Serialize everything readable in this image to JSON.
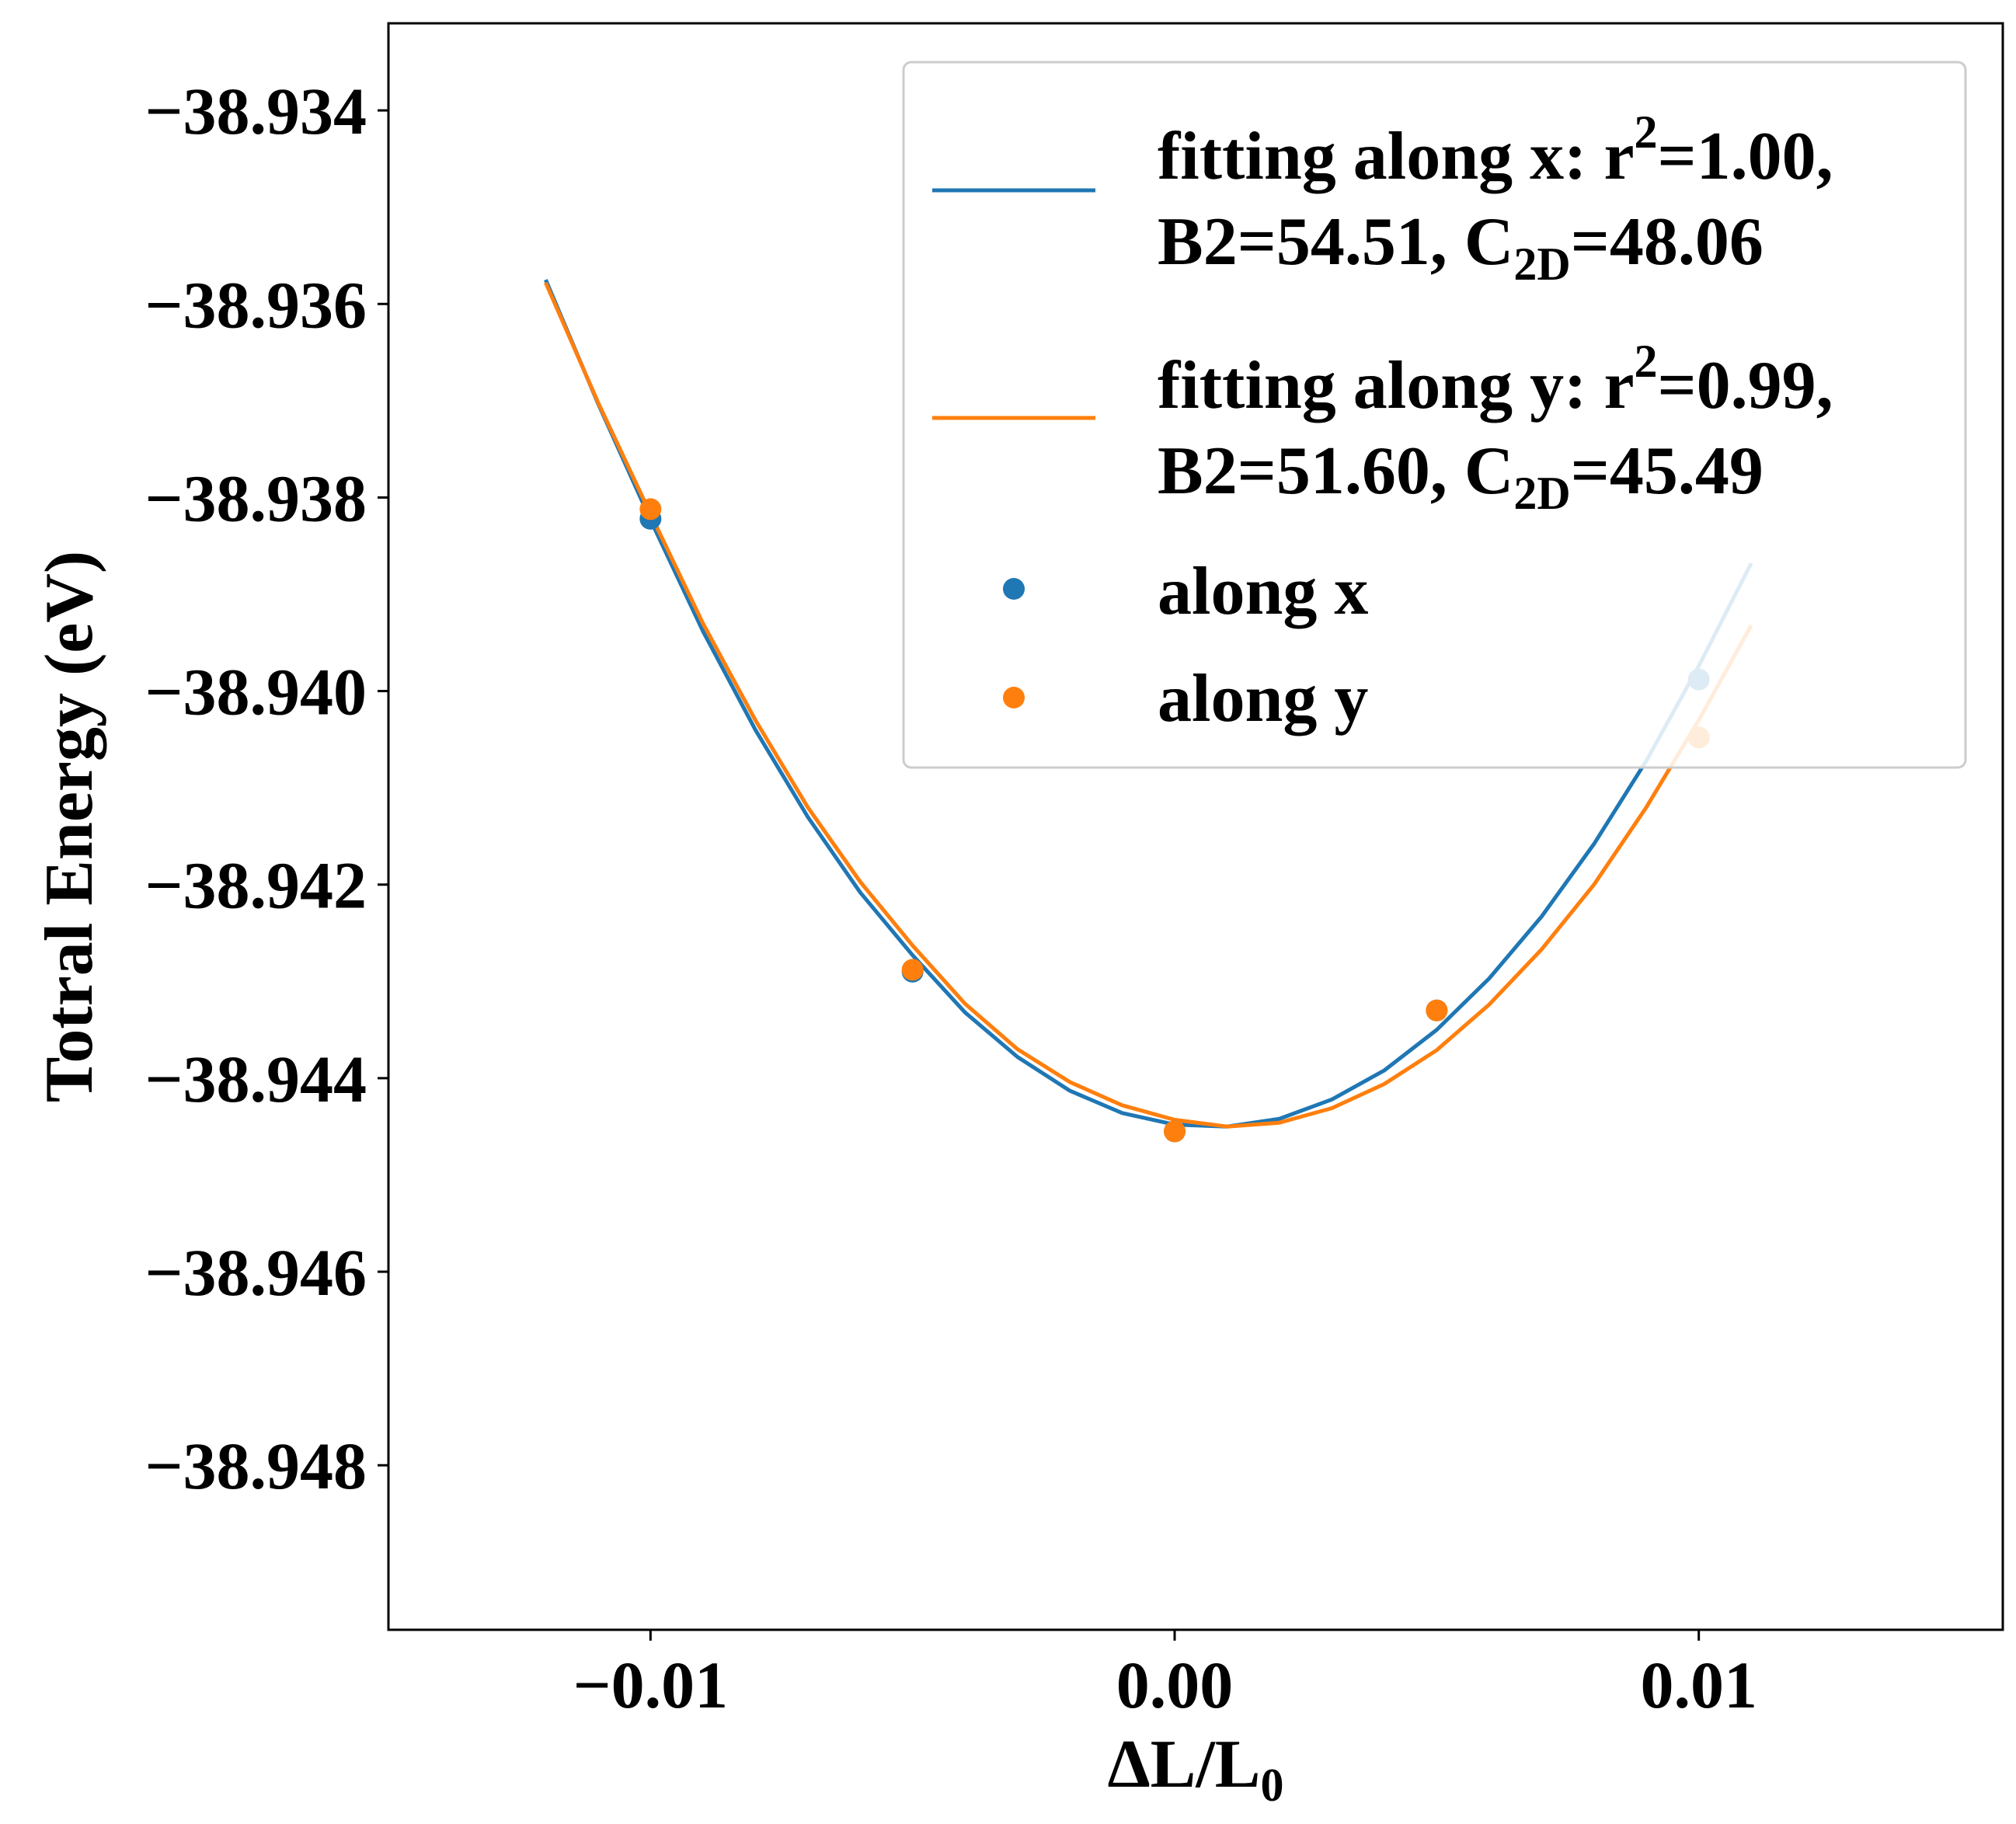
{
  "chart_data": {
    "type": "scatter",
    "xlabel": "ΔL/L",
    "xlabel_subscript": "0",
    "ylabel": "Totral Energy (eV)",
    "xlim": [
      -0.015,
      0.0158
    ],
    "ylim": [
      -38.9497,
      -38.9331
    ],
    "xticks": [
      -0.01,
      0.0,
      0.01
    ],
    "xtick_labels": [
      "−0.01",
      "0.00",
      "0.01"
    ],
    "yticks": [
      -38.934,
      -38.936,
      -38.938,
      -38.94,
      -38.942,
      -38.944,
      -38.946,
      -38.948
    ],
    "ytick_labels": [
      "−38.934",
      "−38.936",
      "−38.938",
      "−38.940",
      "−38.942",
      "−38.944",
      "−38.946",
      "−38.948"
    ],
    "legend_position": "upper-right",
    "series": [
      {
        "name": "fitting along x",
        "kind": "line",
        "color": "#1f77b4",
        "legend_line1_prefix": "fitting along x: r",
        "legend_line1_sup": "2",
        "legend_line1_suffix": "=1.00,",
        "legend_line2_prefix": "B2=54.51, C",
        "legend_line2_sub": "2D",
        "legend_line2_suffix": "=48.06",
        "x": [
          -0.012,
          -0.011,
          -0.01,
          -0.009,
          -0.008,
          -0.007,
          -0.006,
          -0.005,
          -0.004,
          -0.003,
          -0.002,
          -0.001,
          0.0,
          0.001,
          0.002,
          0.003,
          0.004,
          0.005,
          0.006,
          0.007,
          0.008,
          0.009,
          0.01,
          0.011
        ],
        "y": [
          -38.93575,
          -38.93703,
          -38.93823,
          -38.93938,
          -38.9404,
          -38.9413,
          -38.94208,
          -38.94273,
          -38.94332,
          -38.94378,
          -38.94413,
          -38.94436,
          -38.94448,
          -38.9445,
          -38.94442,
          -38.94422,
          -38.94392,
          -38.9435,
          -38.94297,
          -38.94233,
          -38.94158,
          -38.94072,
          -38.93974,
          -38.93868
        ]
      },
      {
        "name": "fitting along y",
        "kind": "line",
        "color": "#ff7f0e",
        "legend_line1_prefix": "fitting along y: r",
        "legend_line1_sup": "2",
        "legend_line1_suffix": "=0.99,",
        "legend_line2_prefix": "B2=51.60, C",
        "legend_line2_sub": "2D",
        "legend_line2_suffix": "=45.49",
        "x": [
          -0.012,
          -0.011,
          -0.01,
          -0.009,
          -0.008,
          -0.007,
          -0.006,
          -0.005,
          -0.004,
          -0.003,
          -0.002,
          -0.001,
          0.0,
          0.001,
          0.002,
          0.003,
          0.004,
          0.005,
          0.006,
          0.007,
          0.008,
          0.009,
          0.01,
          0.011
        ],
        "y": [
          -38.93578,
          -38.93702,
          -38.93817,
          -38.9393,
          -38.9403,
          -38.9412,
          -38.94197,
          -38.94263,
          -38.94323,
          -38.9437,
          -38.94404,
          -38.94428,
          -38.94443,
          -38.9445,
          -38.94446,
          -38.94431,
          -38.94406,
          -38.94371,
          -38.94324,
          -38.94267,
          -38.942,
          -38.9412,
          -38.9403,
          -38.93932
        ]
      },
      {
        "name": "along x",
        "kind": "scatter",
        "color": "#1f77b4",
        "x": [
          -0.01,
          -0.005,
          0.0,
          0.005,
          0.01
        ],
        "y": [
          -38.93822,
          -38.9429,
          -38.94455,
          -38.9433,
          -38.93988
        ]
      },
      {
        "name": "along y",
        "kind": "scatter",
        "color": "#ff7f0e",
        "x": [
          -0.01,
          -0.005,
          0.0,
          0.005,
          0.01
        ],
        "y": [
          -38.93812,
          -38.94288,
          -38.94455,
          -38.9433,
          -38.94048
        ]
      }
    ]
  }
}
